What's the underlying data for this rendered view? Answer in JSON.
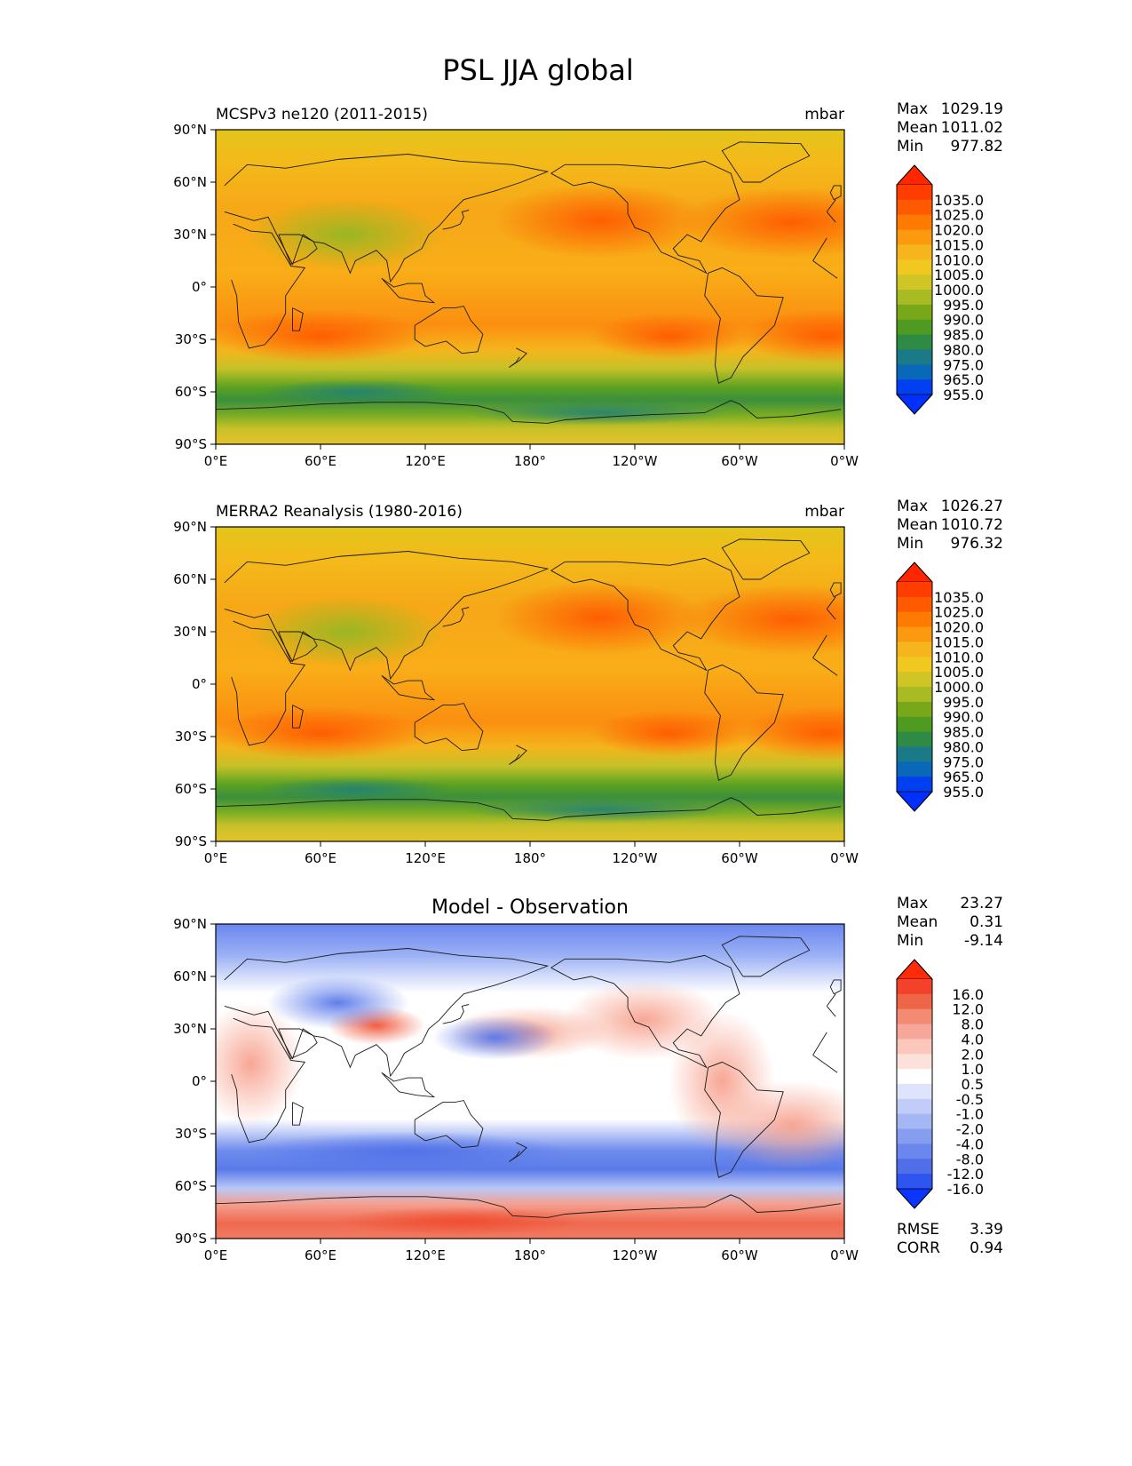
{
  "figure": {
    "title": "PSL JJA global"
  },
  "axes": {
    "lat_labels": [
      "90°N",
      "60°N",
      "30°N",
      "0°",
      "30°S",
      "60°S",
      "90°S"
    ],
    "lon_labels": [
      "0°E",
      "60°E",
      "120°E",
      "180°",
      "120°W",
      "60°W",
      "0°W"
    ]
  },
  "panels": [
    {
      "left_title": "MCSPv3 ne120 (2011-2015)",
      "center_title": "",
      "right_title": "mbar",
      "stats": [
        {
          "label": "Max",
          "value": "1029.19"
        },
        {
          "label": "Mean",
          "value": "1011.02"
        },
        {
          "label": "Min",
          "value": "977.82"
        }
      ],
      "colorbar": {
        "labels": [
          "1035.0",
          "1025.0",
          "1020.0",
          "1015.0",
          "1010.0",
          "1005.0",
          "1000.0",
          "995.0",
          "990.0",
          "985.0",
          "980.0",
          "975.0",
          "965.0",
          "955.0"
        ],
        "colors": [
          "#ff2600",
          "#ff3d00",
          "#ff5a00",
          "#ff7a00",
          "#fb9a0f",
          "#f7b51d",
          "#f0c820",
          "#cfc525",
          "#a8bb22",
          "#78a81a",
          "#4f9a20",
          "#2f8a45",
          "#1a7a88",
          "#0a68b8",
          "#0040f0",
          "#0030ff"
        ]
      },
      "map_style": "observed"
    },
    {
      "left_title": "MERRA2 Reanalysis (1980-2016)",
      "center_title": "",
      "right_title": "mbar",
      "stats": [
        {
          "label": "Max",
          "value": "1026.27"
        },
        {
          "label": "Mean",
          "value": "1010.72"
        },
        {
          "label": "Min",
          "value": "976.32"
        }
      ],
      "colorbar": {
        "labels": [
          "1035.0",
          "1025.0",
          "1020.0",
          "1015.0",
          "1010.0",
          "1005.0",
          "1000.0",
          "995.0",
          "990.0",
          "985.0",
          "980.0",
          "975.0",
          "965.0",
          "955.0"
        ],
        "colors": [
          "#ff2600",
          "#ff3d00",
          "#ff5a00",
          "#ff7a00",
          "#fb9a0f",
          "#f7b51d",
          "#f0c820",
          "#cfc525",
          "#a8bb22",
          "#78a81a",
          "#4f9a20",
          "#2f8a45",
          "#1a7a88",
          "#0a68b8",
          "#0040f0",
          "#0030ff"
        ]
      },
      "map_style": "observed"
    },
    {
      "left_title": "",
      "center_title": "Model - Observation",
      "right_title": "",
      "stats": [
        {
          "label": "Max",
          "value": "23.27"
        },
        {
          "label": "Mean",
          "value": "0.31"
        },
        {
          "label": "Min",
          "value": "-9.14"
        }
      ],
      "colorbar": {
        "labels": [
          "16.0",
          "12.0",
          "8.0",
          "4.0",
          "2.0",
          "1.0",
          "0.5",
          "-0.5",
          "-1.0",
          "-2.0",
          "-4.0",
          "-8.0",
          "-12.0",
          "-16.0"
        ],
        "colors": [
          "#ff2a0a",
          "#f2432a",
          "#ee6548",
          "#f38a72",
          "#f7a799",
          "#fbc6bc",
          "#fde2dc",
          "#ffffff",
          "#dde4fb",
          "#c1cdf8",
          "#a4b6f4",
          "#879df0",
          "#6b86ec",
          "#4f6ee8",
          "#2f55f0",
          "#0a36ff"
        ]
      },
      "map_style": "difference",
      "metrics": [
        {
          "label": "RMSE",
          "value": "3.39"
        },
        {
          "label": "CORR",
          "value": "0.94"
        }
      ]
    }
  ]
}
